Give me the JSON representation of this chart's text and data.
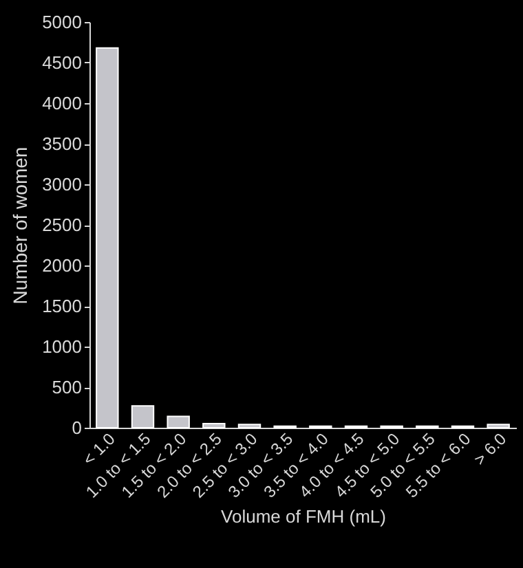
{
  "chart_data": {
    "type": "bar",
    "categories": [
      "< 1.0",
      "1.0 to < 1.5",
      "1.5 to < 2.0",
      "2.0 to < 2.5",
      "2.5 to < 3.0",
      "3.0 to < 3.5",
      "3.5 to < 4.0",
      "4.0 to < 4.5",
      "4.5 to < 5.0",
      "5.0 to < 5.5",
      "5.5 to < 6.0",
      "> 6.0"
    ],
    "values": [
      4680,
      270,
      140,
      50,
      40,
      20,
      20,
      20,
      20,
      20,
      20,
      40
    ],
    "color": "#c4c4ca",
    "xlabel": "Volume of FMH (mL)",
    "ylabel": "Number of women",
    "ylim": [
      0,
      5000
    ],
    "yticks": [
      0,
      500,
      1000,
      1500,
      2000,
      2500,
      3000,
      3500,
      4000,
      4500,
      5000
    ],
    "grid": false
  }
}
